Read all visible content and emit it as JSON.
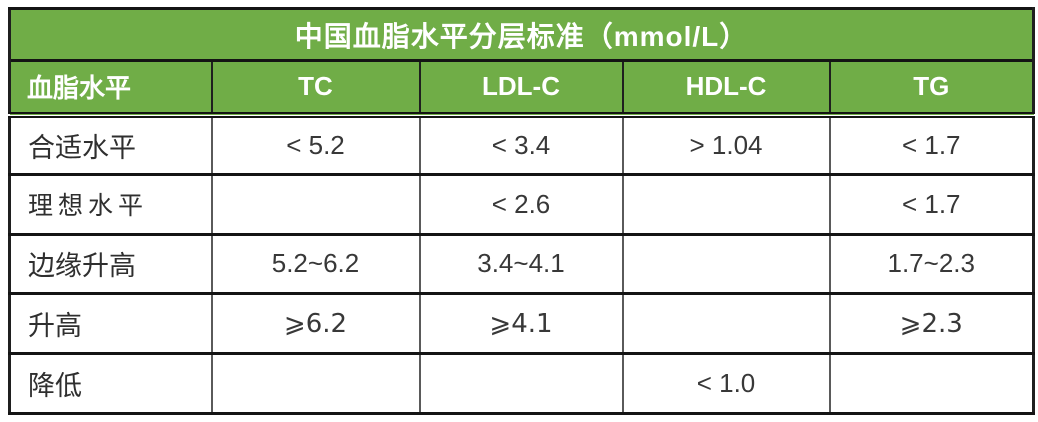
{
  "chart_data": {
    "type": "table",
    "title": "中国血脂水平分层标准（mmol/L）",
    "unit": "mmol/L",
    "columns": [
      "血脂水平",
      "TC",
      "LDL-C",
      "HDL-C",
      "TG"
    ],
    "rows": [
      [
        "合适水平",
        "< 5.2",
        "< 3.4",
        "> 1.04",
        "< 1.7"
      ],
      [
        "理想水平",
        "",
        "< 2.6",
        "",
        "< 1.7"
      ],
      [
        "边缘升高",
        "5.2~6.2",
        "3.4~4.1",
        "",
        "1.7~2.3"
      ],
      [
        "升高",
        "⩾6.2",
        "⩾4.1",
        "",
        "⩾2.3"
      ],
      [
        "降低",
        "",
        "",
        "< 1.0",
        ""
      ]
    ],
    "layout": {
      "title_band": "full-width merged green band",
      "first_column_align": "left",
      "value_align": "center",
      "grid": "on"
    },
    "colors": {
      "header_background": "#70AD47",
      "header_text": "#FFFFFF",
      "body_text": "#383838",
      "horizontal_rule": "#141414",
      "vertical_rule": "#5A5A5A",
      "page_background": "#FFFFFF"
    }
  }
}
